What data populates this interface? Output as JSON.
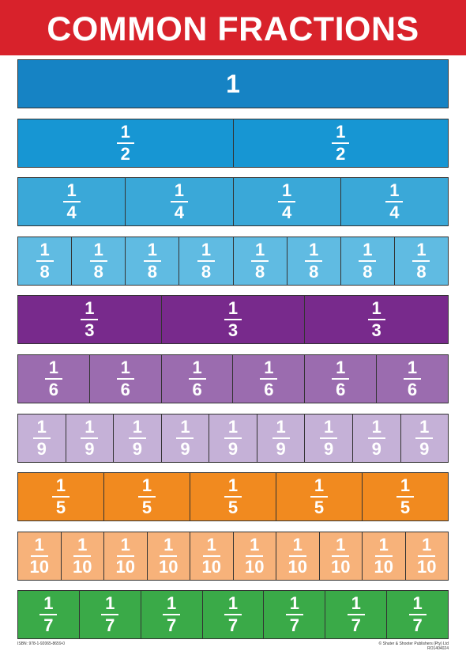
{
  "title": "COMMON FRACTIONS",
  "rows": [
    {
      "color": "#1683c4",
      "cells": [
        {
          "numerator": "1"
        }
      ]
    },
    {
      "color": "#1796d3",
      "cells": [
        {
          "numerator": "1",
          "denominator": "2"
        },
        {
          "numerator": "1",
          "denominator": "2"
        }
      ]
    },
    {
      "color": "#3aa8d8",
      "cells": [
        {
          "numerator": "1",
          "denominator": "4"
        },
        {
          "numerator": "1",
          "denominator": "4"
        },
        {
          "numerator": "1",
          "denominator": "4"
        },
        {
          "numerator": "1",
          "denominator": "4"
        }
      ]
    },
    {
      "color": "#60bbe2",
      "cells": [
        {
          "numerator": "1",
          "denominator": "8"
        },
        {
          "numerator": "1",
          "denominator": "8"
        },
        {
          "numerator": "1",
          "denominator": "8"
        },
        {
          "numerator": "1",
          "denominator": "8"
        },
        {
          "numerator": "1",
          "denominator": "8"
        },
        {
          "numerator": "1",
          "denominator": "8"
        },
        {
          "numerator": "1",
          "denominator": "8"
        },
        {
          "numerator": "1",
          "denominator": "8"
        }
      ]
    },
    {
      "color": "#782a8c",
      "cells": [
        {
          "numerator": "1",
          "denominator": "3"
        },
        {
          "numerator": "1",
          "denominator": "3"
        },
        {
          "numerator": "1",
          "denominator": "3"
        }
      ]
    },
    {
      "color": "#9b6caf",
      "cells": [
        {
          "numerator": "1",
          "denominator": "6"
        },
        {
          "numerator": "1",
          "denominator": "6"
        },
        {
          "numerator": "1",
          "denominator": "6"
        },
        {
          "numerator": "1",
          "denominator": "6"
        },
        {
          "numerator": "1",
          "denominator": "6"
        },
        {
          "numerator": "1",
          "denominator": "6"
        }
      ]
    },
    {
      "color": "#c5b1d7",
      "cells": [
        {
          "numerator": "1",
          "denominator": "9"
        },
        {
          "numerator": "1",
          "denominator": "9"
        },
        {
          "numerator": "1",
          "denominator": "9"
        },
        {
          "numerator": "1",
          "denominator": "9"
        },
        {
          "numerator": "1",
          "denominator": "9"
        },
        {
          "numerator": "1",
          "denominator": "9"
        },
        {
          "numerator": "1",
          "denominator": "9"
        },
        {
          "numerator": "1",
          "denominator": "9"
        },
        {
          "numerator": "1",
          "denominator": "9"
        }
      ]
    },
    {
      "color": "#f18a1f",
      "cells": [
        {
          "numerator": "1",
          "denominator": "5"
        },
        {
          "numerator": "1",
          "denominator": "5"
        },
        {
          "numerator": "1",
          "denominator": "5"
        },
        {
          "numerator": "1",
          "denominator": "5"
        },
        {
          "numerator": "1",
          "denominator": "5"
        }
      ]
    },
    {
      "color": "#f7b27a",
      "cells": [
        {
          "numerator": "1",
          "denominator": "10"
        },
        {
          "numerator": "1",
          "denominator": "10"
        },
        {
          "numerator": "1",
          "denominator": "10"
        },
        {
          "numerator": "1",
          "denominator": "10"
        },
        {
          "numerator": "1",
          "denominator": "10"
        },
        {
          "numerator": "1",
          "denominator": "10"
        },
        {
          "numerator": "1",
          "denominator": "10"
        },
        {
          "numerator": "1",
          "denominator": "10"
        },
        {
          "numerator": "1",
          "denominator": "10"
        },
        {
          "numerator": "1",
          "denominator": "10"
        }
      ]
    },
    {
      "color": "#3aaa48",
      "cells": [
        {
          "numerator": "1",
          "denominator": "7"
        },
        {
          "numerator": "1",
          "denominator": "7"
        },
        {
          "numerator": "1",
          "denominator": "7"
        },
        {
          "numerator": "1",
          "denominator": "7"
        },
        {
          "numerator": "1",
          "denominator": "7"
        },
        {
          "numerator": "1",
          "denominator": "7"
        },
        {
          "numerator": "1",
          "denominator": "7"
        }
      ]
    }
  ],
  "footer": {
    "isbn": "ISBN: 978-1-92065-8659-0",
    "publisher": "© Shuter & Shooter Publishers (Pty) Ltd",
    "code": "RO1404024"
  }
}
